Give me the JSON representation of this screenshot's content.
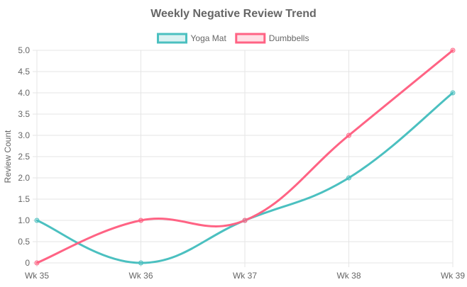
{
  "chart_data": {
    "type": "line",
    "title": "Weekly Negative Review Trend",
    "xlabel": "",
    "ylabel": "Review Count",
    "categories": [
      "Wk 35",
      "Wk 36",
      "Wk 37",
      "Wk 38",
      "Wk 39"
    ],
    "ylim": [
      0,
      5
    ],
    "yticks": [
      "0",
      "0.5",
      "1.0",
      "1.5",
      "2.0",
      "2.5",
      "3.0",
      "3.5",
      "4.0",
      "4.5",
      "5.0"
    ],
    "grid": true,
    "legend_position": "top",
    "series": [
      {
        "name": "Yoga Mat",
        "values": [
          1,
          0,
          1,
          2,
          4
        ],
        "color": "#4bc0c0",
        "fill": "rgba(75,192,192,0.2)"
      },
      {
        "name": "Dumbbells",
        "values": [
          0,
          1,
          1,
          3,
          5
        ],
        "color": "#ff6384",
        "fill": "rgba(255,99,132,0.2)"
      }
    ]
  }
}
